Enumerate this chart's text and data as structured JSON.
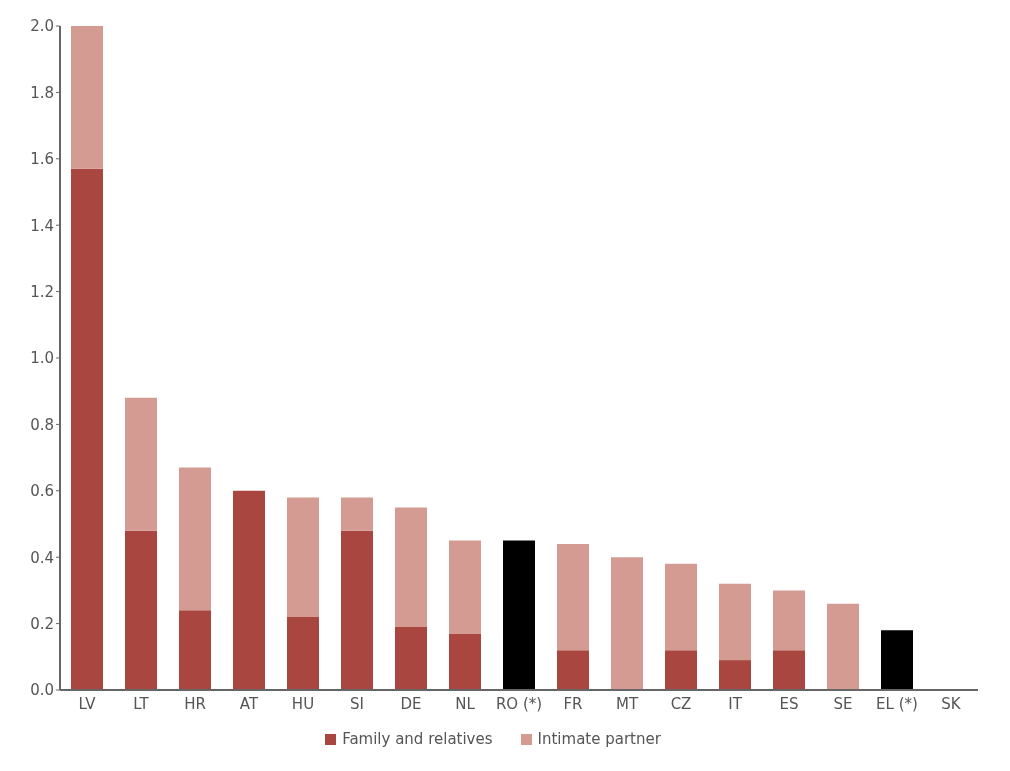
{
  "chart_data": {
    "type": "bar",
    "stacked": true,
    "categories": [
      "LV",
      "LT",
      "HR",
      "AT",
      "HU",
      "SI",
      "DE",
      "NL",
      "RO (*)",
      "FR",
      "MT",
      "CZ",
      "IT",
      "ES",
      "SE",
      "EL (*)",
      "SK"
    ],
    "series": [
      {
        "name": "Family and relatives",
        "color": "#a94640",
        "values": [
          1.57,
          0.48,
          0.24,
          0.6,
          0.22,
          0.48,
          0.19,
          0.17,
          null,
          0.12,
          null,
          0.12,
          0.09,
          0.12,
          null,
          null,
          null
        ]
      },
      {
        "name": "Intimate partner",
        "color": "#d49b93",
        "values": [
          0.43,
          0.4,
          0.43,
          null,
          0.36,
          0.1,
          0.36,
          0.28,
          null,
          0.32,
          0.4,
          0.26,
          0.23,
          0.18,
          0.26,
          null,
          null
        ]
      },
      {
        "color": "#000000",
        "values": [
          null,
          null,
          null,
          null,
          null,
          null,
          null,
          null,
          0.45,
          null,
          null,
          null,
          null,
          null,
          null,
          0.18,
          null
        ]
      }
    ],
    "ylim": [
      0,
      2
    ],
    "yticks": [
      {
        "value": 0,
        "label": "0.0"
      },
      {
        "value": 0.2,
        "label": "0.2"
      },
      {
        "value": 0.4,
        "label": "0.4"
      },
      {
        "value": 0.6,
        "label": "0.6"
      },
      {
        "value": 0.8,
        "label": "0.8"
      },
      {
        "value": 1,
        "label": "1.0"
      },
      {
        "value": 1.2,
        "label": "1.2"
      },
      {
        "value": 1.4,
        "label": "1.4"
      },
      {
        "value": 1.6,
        "label": "1.6"
      },
      {
        "value": 1.8,
        "label": "1.8"
      },
      {
        "value": 2,
        "label": "2.0"
      }
    ],
    "grid": false,
    "legend": "bottom"
  }
}
